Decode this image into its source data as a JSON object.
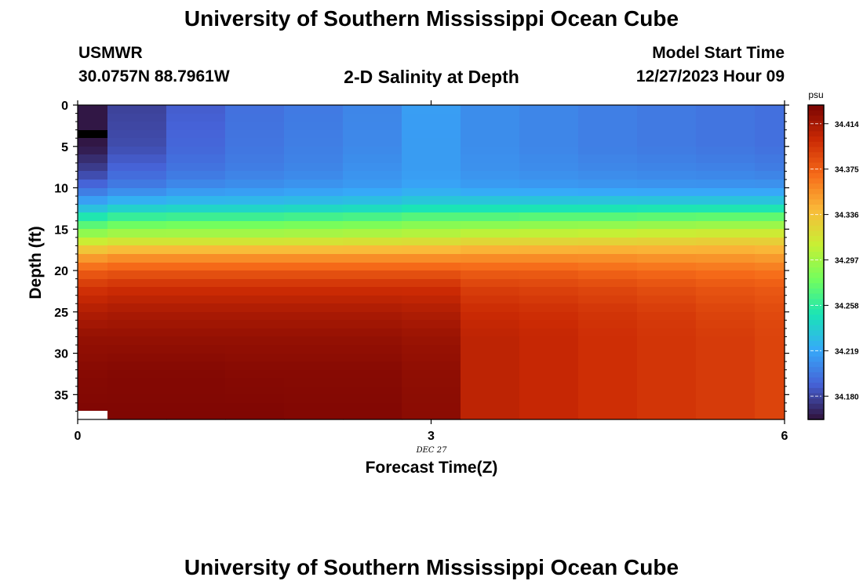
{
  "page": {
    "title_top": "University of Southern Mississippi Ocean Cube",
    "title_bottom": "University of Southern Mississippi Ocean Cube",
    "station": "USMWR",
    "coords": "30.0757N  88.7961W",
    "plot_title": "2-D Salinity at Depth",
    "model_start_label": "Model Start Time",
    "model_start_value": "12/27/2023 Hour 09",
    "date_label": "DEC 27"
  },
  "chart_data": {
    "type": "heatmap",
    "title": "2-D Salinity at Depth",
    "xlabel": "Forecast Time(Z)",
    "ylabel": "Depth (ft)",
    "xlim": [
      0,
      6
    ],
    "ylim": [
      0,
      38
    ],
    "y_inverted": true,
    "x_ticks": [
      0,
      3,
      6
    ],
    "y_ticks": [
      0,
      5,
      10,
      15,
      20,
      25,
      30,
      35
    ],
    "x_tick_labels": [
      "0",
      "3",
      "6"
    ],
    "y_tick_labels": [
      "0",
      "5",
      "10",
      "15",
      "20",
      "25",
      "30",
      "35"
    ],
    "colorbar": {
      "label": "psu",
      "min": 34.16,
      "max": 34.43,
      "ticks": [
        34.18,
        34.219,
        34.258,
        34.297,
        34.336,
        34.375,
        34.414
      ],
      "tick_labels": [
        "34.180",
        "34.219",
        "34.258",
        "34.297",
        "34.336",
        "34.375",
        "34.414"
      ]
    },
    "x_centers": [
      0,
      0.5,
      1,
      1.5,
      2,
      2.5,
      3,
      3.5,
      4,
      4.5,
      5,
      5.5,
      6
    ],
    "depth_bins": [
      0,
      1,
      2,
      3,
      4,
      5,
      6,
      7,
      8,
      9,
      10,
      11,
      12,
      13,
      14,
      15,
      16,
      17,
      18,
      19,
      20,
      21,
      22,
      23,
      24,
      25,
      26,
      27,
      28,
      29,
      30,
      31,
      32,
      33,
      34,
      35,
      36,
      37,
      38
    ],
    "profile_depths": [
      0,
      5,
      8,
      10,
      12,
      14,
      16,
      18,
      20,
      22,
      25,
      28,
      32,
      38
    ],
    "profiles": [
      [
        34.162,
        34.162,
        34.178,
        34.195,
        34.222,
        34.262,
        34.3,
        34.345,
        34.375,
        34.395,
        34.41,
        34.42,
        34.425,
        34.428
      ],
      [
        34.178,
        34.182,
        34.192,
        34.202,
        34.23,
        34.27,
        34.305,
        34.35,
        34.378,
        34.398,
        34.412,
        34.42,
        34.426,
        34.428
      ],
      [
        34.188,
        34.192,
        34.198,
        34.208,
        34.232,
        34.272,
        34.305,
        34.35,
        34.378,
        34.398,
        34.412,
        34.42,
        34.426,
        34.428
      ],
      [
        34.196,
        34.198,
        34.202,
        34.21,
        34.232,
        34.272,
        34.305,
        34.35,
        34.378,
        34.398,
        34.412,
        34.42,
        34.425,
        34.428
      ],
      [
        34.2,
        34.202,
        34.205,
        34.212,
        34.234,
        34.274,
        34.306,
        34.35,
        34.378,
        34.398,
        34.412,
        34.42,
        34.425,
        34.427
      ],
      [
        34.205,
        34.206,
        34.21,
        34.214,
        34.236,
        34.276,
        34.308,
        34.35,
        34.378,
        34.398,
        34.412,
        34.42,
        34.425,
        34.427
      ],
      [
        34.215,
        34.214,
        34.214,
        34.218,
        34.24,
        34.28,
        34.31,
        34.35,
        34.378,
        34.398,
        34.41,
        34.418,
        34.422,
        34.424
      ],
      [
        34.208,
        34.208,
        34.21,
        34.215,
        34.24,
        34.28,
        34.315,
        34.352,
        34.375,
        34.39,
        34.4,
        34.405,
        34.405,
        34.405
      ],
      [
        34.205,
        34.205,
        34.208,
        34.214,
        34.24,
        34.282,
        34.316,
        34.352,
        34.375,
        34.388,
        34.398,
        34.402,
        34.402,
        34.402
      ],
      [
        34.202,
        34.202,
        34.206,
        34.213,
        34.24,
        34.282,
        34.318,
        34.352,
        34.372,
        34.386,
        34.395,
        34.398,
        34.398,
        34.398
      ],
      [
        34.2,
        34.2,
        34.205,
        34.212,
        34.24,
        34.284,
        34.32,
        34.35,
        34.37,
        34.383,
        34.392,
        34.395,
        34.395,
        34.395
      ],
      [
        34.198,
        34.198,
        34.204,
        34.212,
        34.24,
        34.285,
        34.322,
        34.35,
        34.368,
        34.38,
        34.388,
        34.392,
        34.392,
        34.392
      ],
      [
        34.196,
        34.196,
        34.202,
        34.212,
        34.24,
        34.285,
        34.322,
        34.348,
        34.366,
        34.378,
        34.385,
        34.388,
        34.388,
        34.388
      ]
    ],
    "masked_cells": [
      {
        "x": 0,
        "depth": 3,
        "color": "#000000"
      },
      {
        "x": 0,
        "depth": 37,
        "color": "#ffffff"
      }
    ]
  },
  "colors": {
    "colormap": [
      "#30123b",
      "#4662d7",
      "#36aaf9",
      "#1ae4b6",
      "#72fe5e",
      "#c8ef34",
      "#faba39",
      "#f66b19",
      "#cb2a04",
      "#7a0403"
    ]
  }
}
